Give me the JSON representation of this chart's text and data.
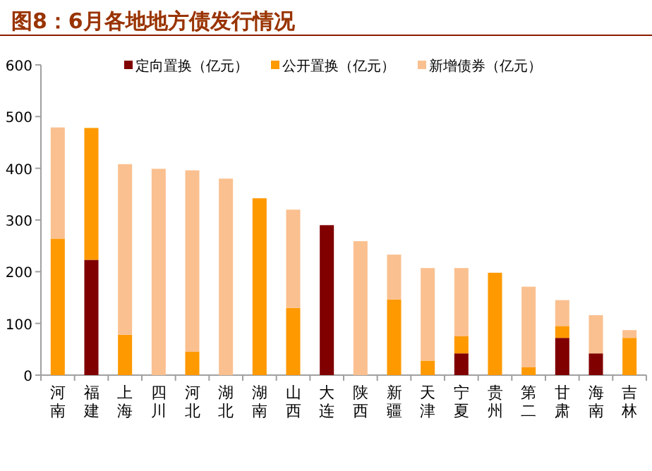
{
  "chart_data": {
    "type": "bar",
    "title": "图8：6月各地地方债发行情况",
    "categories": [
      "河南",
      "福建",
      "上海",
      "四川",
      "河北",
      "湖北",
      "湖南",
      "山西",
      "大连",
      "陕西",
      "新疆",
      "天津",
      "宁夏",
      "贵州",
      "第二",
      "甘肃",
      "海南",
      "吉林"
    ],
    "stacked": true,
    "legend": "top",
    "ylim": [
      0,
      600
    ],
    "yticks": [
      0,
      100,
      200,
      300,
      400,
      500,
      600
    ],
    "series": [
      {
        "name": "定向置换（亿元）",
        "color": "#800000",
        "values": [
          0,
          223,
          0,
          0,
          0,
          0,
          0,
          0,
          290,
          0,
          0,
          0,
          42,
          0,
          0,
          72,
          42,
          0
        ]
      },
      {
        "name": "公开置换（亿元）",
        "color": "#ff9900",
        "values": [
          264,
          255,
          78,
          0,
          45,
          0,
          342,
          130,
          0,
          0,
          146,
          28,
          33,
          198,
          15,
          23,
          0,
          72
        ]
      },
      {
        "name": "新增债券（亿元）",
        "color": "#fac090",
        "values": [
          215,
          0,
          330,
          399,
          351,
          380,
          0,
          190,
          0,
          259,
          87,
          179,
          132,
          0,
          156,
          50,
          74,
          15
        ]
      }
    ]
  }
}
